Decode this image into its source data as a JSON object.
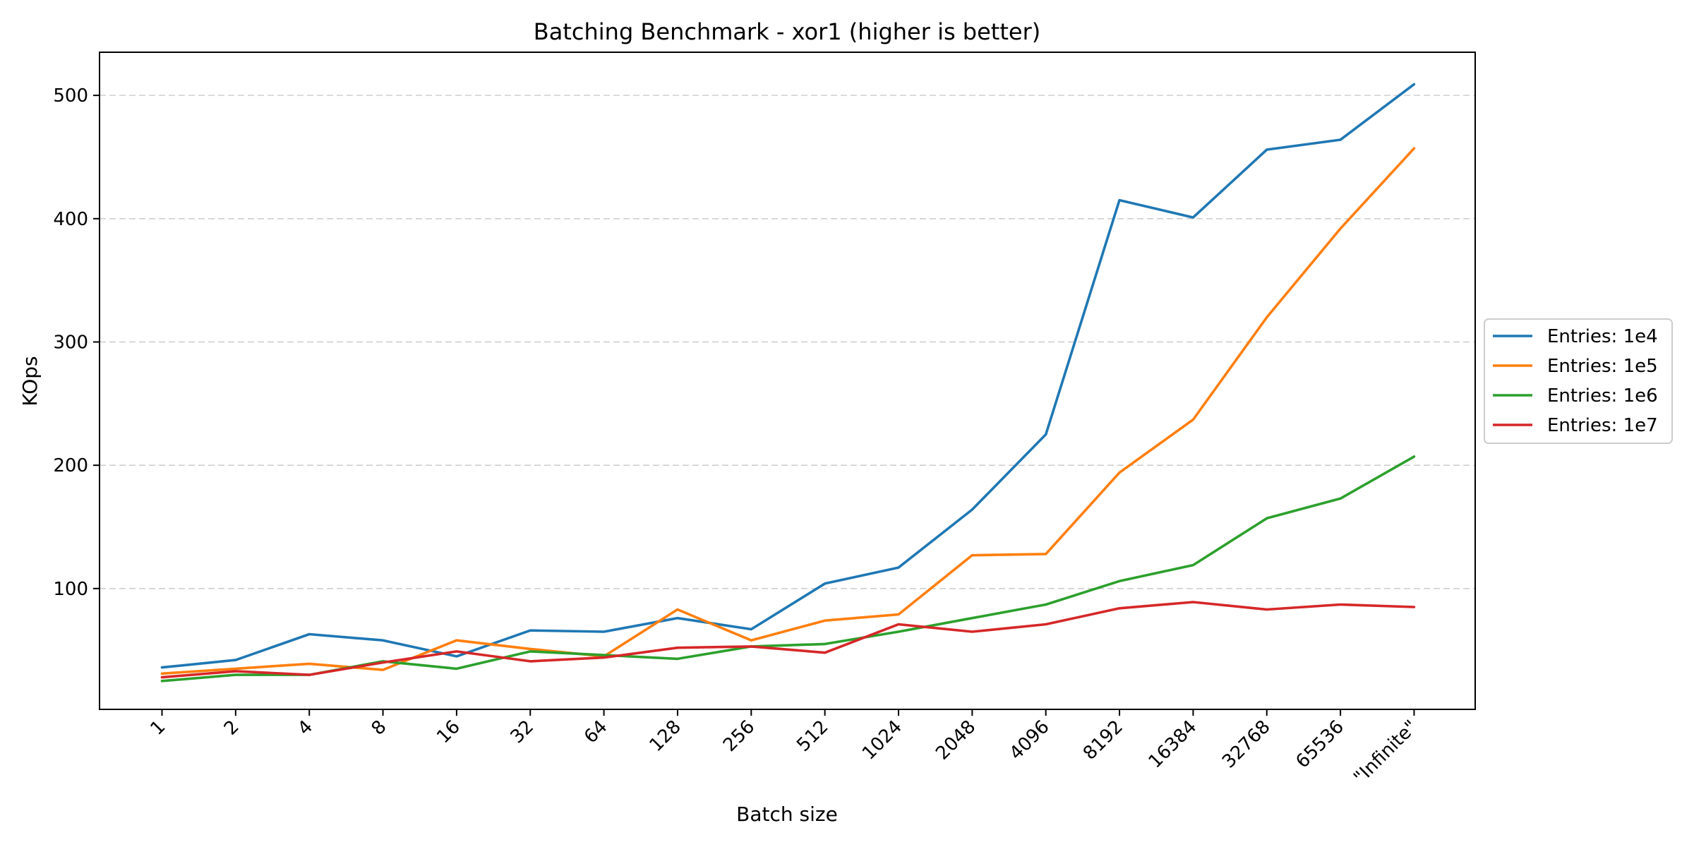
{
  "chart_data": {
    "type": "line",
    "title": "Batching Benchmark - xor1 (higher is better)",
    "xlabel": "Batch size",
    "ylabel": "KOps",
    "categories": [
      "1",
      "2",
      "4",
      "8",
      "16",
      "32",
      "64",
      "128",
      "256",
      "512",
      "1024",
      "2048",
      "4096",
      "8192",
      "16384",
      "32768",
      "65536",
      "\"Infinite\""
    ],
    "yticks": [
      100,
      200,
      300,
      400,
      500
    ],
    "ylim": [
      2,
      535
    ],
    "grid": "y-dashed",
    "legend_position": "right",
    "series": [
      {
        "name": "Entries: 1e4",
        "color": "#1f77b4",
        "values": [
          36,
          42,
          63,
          58,
          45,
          66,
          65,
          76,
          67,
          104,
          117,
          164,
          225,
          415,
          401,
          456,
          464,
          509
        ]
      },
      {
        "name": "Entries: 1e5",
        "color": "#ff7f0e",
        "values": [
          31,
          35,
          39,
          34,
          58,
          51,
          45,
          83,
          58,
          74,
          79,
          127,
          128,
          194,
          237,
          320,
          392,
          457
        ]
      },
      {
        "name": "Entries: 1e6",
        "color": "#2ca02c",
        "values": [
          25,
          30,
          30,
          41,
          35,
          49,
          46,
          43,
          53,
          55,
          65,
          76,
          87,
          106,
          119,
          157,
          173,
          207
        ]
      },
      {
        "name": "Entries: 1e7",
        "color": "#d62728",
        "values": [
          28,
          33,
          30,
          40,
          49,
          41,
          44,
          52,
          53,
          48,
          71,
          65,
          71,
          84,
          89,
          83,
          87,
          85
        ]
      }
    ]
  }
}
